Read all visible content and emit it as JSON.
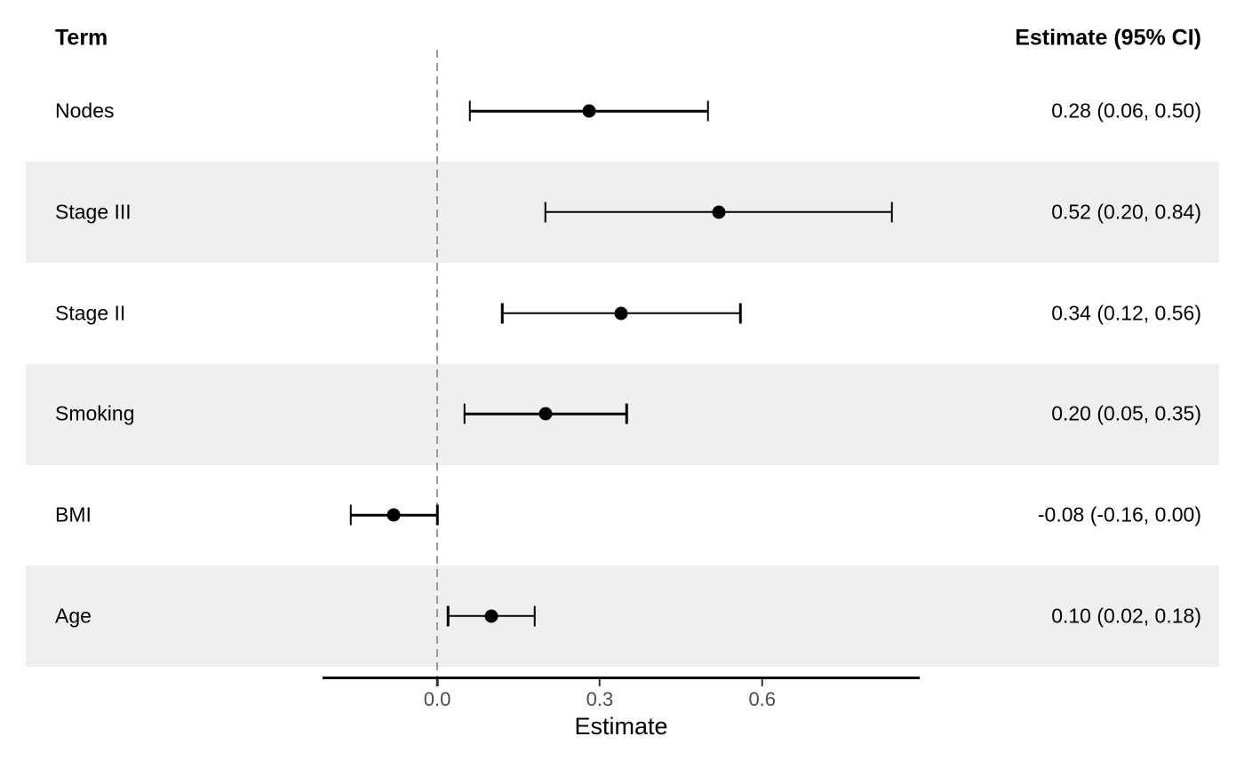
{
  "chart_data": {
    "type": "forest",
    "term_header": "Term",
    "estimate_header": "Estimate (95% CI)",
    "xlabel": "Estimate",
    "x_ticks": [
      {
        "value": 0.0,
        "label": "0.0"
      },
      {
        "value": 0.3,
        "label": "0.3"
      },
      {
        "value": 0.6,
        "label": "0.6"
      }
    ],
    "xlim": [
      -0.21,
      0.89
    ],
    "reference_line": 0.0,
    "rows": [
      {
        "term": "Nodes",
        "estimate": 0.28,
        "ci_low": 0.06,
        "ci_high": 0.5,
        "estimate_label": "0.28 (0.06, 0.50)",
        "striped": false
      },
      {
        "term": "Stage III",
        "estimate": 0.52,
        "ci_low": 0.2,
        "ci_high": 0.84,
        "estimate_label": "0.52 (0.20, 0.84)",
        "striped": true
      },
      {
        "term": "Stage II",
        "estimate": 0.34,
        "ci_low": 0.12,
        "ci_high": 0.56,
        "estimate_label": "0.34 (0.12, 0.56)",
        "striped": false
      },
      {
        "term": "Smoking",
        "estimate": 0.2,
        "ci_low": 0.05,
        "ci_high": 0.35,
        "estimate_label": "0.20 (0.05, 0.35)",
        "striped": true
      },
      {
        "term": "BMI",
        "estimate": -0.08,
        "ci_low": -0.16,
        "ci_high": 0.0,
        "estimate_label": "-0.08 (-0.16, 0.00)",
        "striped": false
      },
      {
        "term": "Age",
        "estimate": 0.1,
        "ci_low": 0.02,
        "ci_high": 0.18,
        "estimate_label": "0.10 (0.02, 0.18)",
        "striped": true
      }
    ],
    "colors": {
      "background": "#FFFFFF",
      "stripe": "#EFEFEF",
      "marker": "#000000",
      "ci_line": "#000000",
      "reference_line": "#999999",
      "axis_line": "#000000",
      "tick_mark": "#333333",
      "tick_label": "#4D4D4D",
      "text": "#000000"
    }
  }
}
